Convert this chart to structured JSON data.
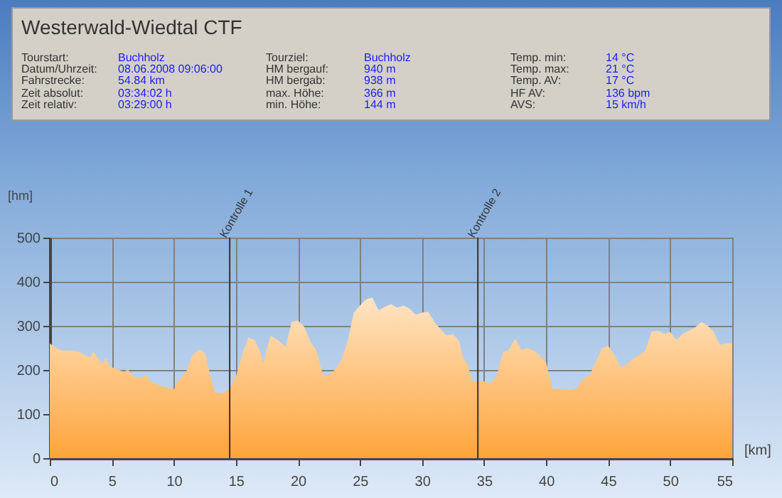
{
  "chart_data": [
    {
      "type": "other",
      "title": "Westerwald-Wiedtal CTF",
      "annotations": [
        "Tourstart:",
        "Buchholz",
        "Datum/Uhrzeit:",
        "08.06.2008 09:06:00",
        "Fahrstrecke:",
        "54.84 km",
        "Zeit absolut:",
        "03:34:02 h",
        "Zeit relativ:",
        "03:29:00 h",
        "Tourziel:",
        "Buchholz",
        "HM bergauf:",
        "940 m",
        "HM bergab:",
        "938 m",
        "max. Höhe:",
        "366 m",
        "min. Höhe:",
        "144 m",
        "Temp. min:",
        "14 °C",
        "Temp. max:",
        "21 °C",
        "Temp. AV:",
        "17 °C",
        "HF AV:",
        "136 bpm",
        "AVS:",
        "15 km/h"
      ]
    },
    {
      "type": "area",
      "xlabel": "[km]",
      "ylabel": "[hm]",
      "x": [
        0,
        0.5,
        1,
        2,
        2.5,
        3,
        3.3,
        3.5,
        4,
        4.3,
        4.5,
        4.8,
        5,
        5.5,
        6,
        6.3,
        6.6,
        7,
        7.5,
        7.7,
        8,
        8.3,
        9,
        9.5,
        10,
        10.3,
        11,
        11.5,
        12,
        12.5,
        13,
        13.3,
        14,
        14.5,
        15,
        15.5,
        16,
        16.5,
        17,
        17.2,
        17.5,
        17.8,
        18.5,
        19,
        19.5,
        20,
        20.5,
        21,
        21.5,
        22,
        22.3,
        23,
        23.5,
        24,
        24.5,
        25,
        25.5,
        26,
        26.5,
        27,
        27.5,
        28,
        28.5,
        29,
        29.5,
        30,
        30.5,
        31,
        31.5,
        32,
        32.5,
        33,
        33.3,
        33.7,
        34,
        35,
        35.5,
        36,
        36.5,
        37,
        37.5,
        38,
        38.5,
        39,
        39.5,
        40,
        40.5,
        41,
        42,
        42.5,
        43,
        43.5,
        44,
        44.5,
        45,
        45.5,
        46,
        46.5,
        47,
        48,
        48.5,
        49,
        49.5,
        50,
        50.5,
        51,
        51.5,
        52,
        52.5,
        53,
        53.5,
        54,
        54.5,
        55
      ],
      "series": [
        {
          "color": "#ffa43a",
          "values": [
            260,
            250,
            244,
            244,
            239,
            231,
            228,
            242,
            222,
            214,
            228,
            210,
            206,
            201,
            196,
            201,
            190,
            183,
            183,
            190,
            180,
            171,
            163,
            160,
            156,
            174,
            196,
            233,
            246,
            239,
            180,
            149,
            147,
            158,
            185,
            233,
            273,
            268,
            239,
            214,
            249,
            278,
            265,
            253,
            309,
            312,
            298,
            265,
            244,
            190,
            186,
            201,
            222,
            265,
            330,
            346,
            360,
            364,
            335,
            343,
            349,
            341,
            346,
            339,
            325,
            330,
            332,
            309,
            292,
            278,
            282,
            265,
            228,
            212,
            174,
            174,
            169,
            185,
            239,
            246,
            271,
            246,
            249,
            244,
            233,
            217,
            158,
            156,
            155,
            158,
            180,
            188,
            217,
            249,
            255,
            235,
            206,
            212,
            225,
            244,
            287,
            289,
            282,
            286,
            268,
            282,
            289,
            296,
            309,
            301,
            287,
            257,
            260,
            260
          ]
        }
      ],
      "xlim": [
        0,
        55
      ],
      "xticks": [
        0,
        5,
        10,
        15,
        20,
        25,
        30,
        35,
        40,
        45,
        50,
        55
      ],
      "ylim": [
        0,
        500
      ],
      "yticks": [
        0,
        100,
        200,
        300,
        400,
        500
      ],
      "grid": true,
      "ref_lines": [
        {
          "axis": "x",
          "value": 14.5,
          "label": "Kontrolle 1"
        },
        {
          "axis": "x",
          "value": 34.5,
          "label": "Kontrolle 2"
        }
      ]
    }
  ]
}
